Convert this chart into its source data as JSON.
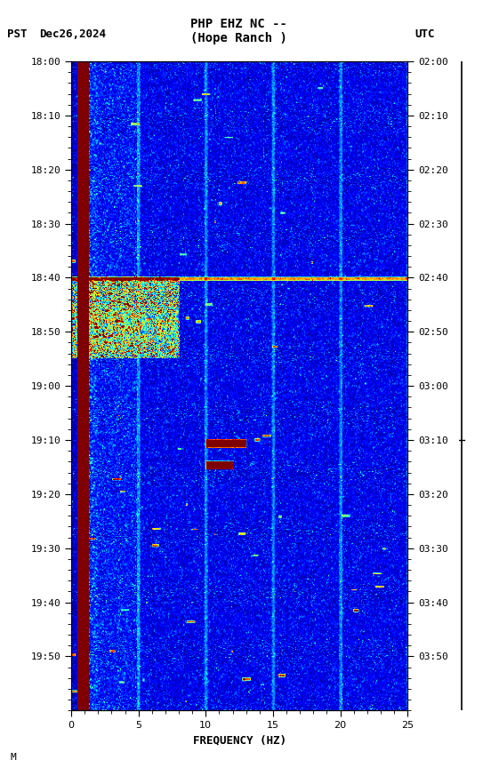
{
  "title_line1": "PHP EHZ NC --",
  "title_line2": "(Hope Ranch )",
  "left_label": "PST",
  "date_label": "Dec26,2024",
  "right_label": "UTC",
  "freq_label": "FREQUENCY (HZ)",
  "freq_min": 0,
  "freq_max": 25,
  "pst_ticks": [
    "18:00",
    "18:10",
    "18:20",
    "18:30",
    "18:40",
    "18:50",
    "19:00",
    "19:10",
    "19:20",
    "19:30",
    "19:40",
    "19:50"
  ],
  "utc_ticks": [
    "02:00",
    "02:10",
    "02:20",
    "02:30",
    "02:40",
    "02:50",
    "03:00",
    "03:10",
    "03:20",
    "03:30",
    "03:40",
    "03:50"
  ],
  "fig_width": 5.52,
  "fig_height": 8.64,
  "dpi": 100,
  "footnote": "M",
  "n_time": 720,
  "n_freq": 400,
  "seed": 42
}
